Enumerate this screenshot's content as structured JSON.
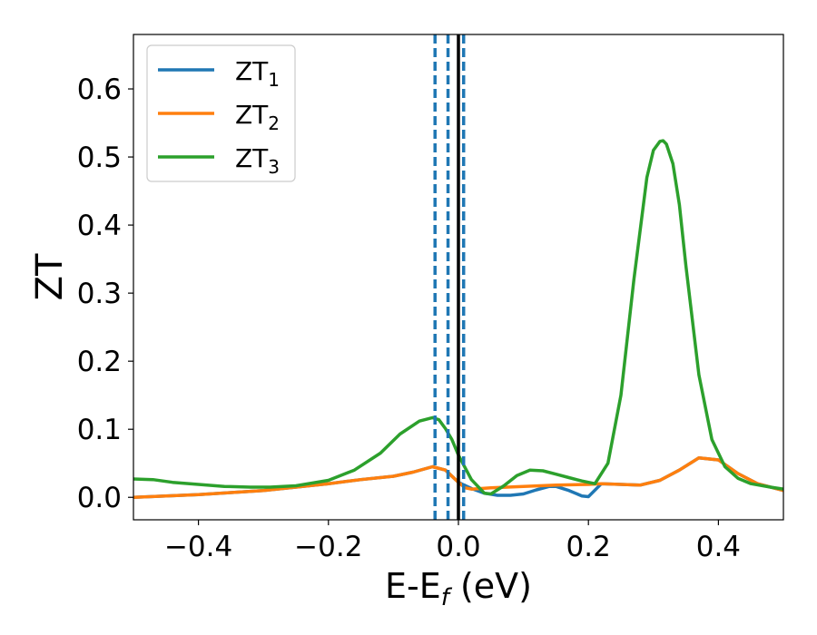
{
  "chart_data": {
    "type": "line",
    "xlabel_main": "E-E",
    "xlabel_sub": "f",
    "xlabel_tail": " (eV)",
    "ylabel": "ZT",
    "xlim": [
      -0.5,
      0.5
    ],
    "ylim": [
      -0.033,
      0.68
    ],
    "xticks": [
      -0.4,
      -0.2,
      0.0,
      0.2,
      0.4
    ],
    "xtick_labels": [
      "−0.4",
      "−0.2",
      "0.0",
      "0.2",
      "0.4"
    ],
    "yticks": [
      0.0,
      0.1,
      0.2,
      0.3,
      0.4,
      0.5,
      0.6
    ],
    "ytick_labels": [
      "0.0",
      "0.1",
      "0.2",
      "0.3",
      "0.4",
      "0.5",
      "0.6"
    ],
    "grid": false,
    "legend_position": "top-left",
    "vlines": [
      {
        "x": -0.036,
        "style": "dashed",
        "color": "#1f77b4"
      },
      {
        "x": -0.016,
        "style": "dashed",
        "color": "#1f77b4"
      },
      {
        "x": 0.008,
        "style": "dashed",
        "color": "#1f77b4"
      },
      {
        "x": 0.0,
        "style": "solid",
        "color": "#000000"
      }
    ],
    "series": [
      {
        "name": "ZT",
        "name_sub": "1",
        "color": "#1f77b4",
        "x": [
          -0.5,
          -0.45,
          -0.4,
          -0.35,
          -0.3,
          -0.25,
          -0.2,
          -0.15,
          -0.1,
          -0.07,
          -0.04,
          -0.02,
          0.0,
          0.02,
          0.04,
          0.06,
          0.08,
          0.1,
          0.12,
          0.14,
          0.15,
          0.17,
          0.19,
          0.2,
          0.22,
          0.25,
          0.28,
          0.31,
          0.34,
          0.37,
          0.4,
          0.43,
          0.46,
          0.5
        ],
        "values": [
          0.0,
          0.002,
          0.004,
          0.007,
          0.01,
          0.015,
          0.02,
          0.026,
          0.031,
          0.037,
          0.045,
          0.04,
          0.022,
          0.013,
          0.006,
          0.003,
          0.003,
          0.005,
          0.011,
          0.016,
          0.016,
          0.01,
          0.002,
          0.001,
          0.02,
          0.019,
          0.018,
          0.025,
          0.04,
          0.058,
          0.055,
          0.035,
          0.02,
          0.01
        ]
      },
      {
        "name": "ZT",
        "name_sub": "2",
        "color": "#ff7f0e",
        "x": [
          -0.5,
          -0.45,
          -0.4,
          -0.35,
          -0.3,
          -0.25,
          -0.2,
          -0.15,
          -0.1,
          -0.07,
          -0.04,
          -0.02,
          0.0,
          0.005,
          0.01,
          0.02,
          0.05,
          0.1,
          0.15,
          0.2,
          0.22,
          0.25,
          0.28,
          0.31,
          0.34,
          0.37,
          0.4,
          0.43,
          0.46,
          0.5
        ],
        "values": [
          0.0,
          0.002,
          0.004,
          0.007,
          0.01,
          0.015,
          0.02,
          0.026,
          0.031,
          0.037,
          0.045,
          0.04,
          0.022,
          0.018,
          0.014,
          0.012,
          0.014,
          0.016,
          0.018,
          0.019,
          0.02,
          0.019,
          0.018,
          0.025,
          0.04,
          0.058,
          0.055,
          0.035,
          0.02,
          0.01
        ]
      },
      {
        "name": "ZT",
        "name_sub": "3",
        "color": "#2ca02c",
        "x": [
          -0.5,
          -0.47,
          -0.44,
          -0.4,
          -0.36,
          -0.32,
          -0.29,
          -0.25,
          -0.2,
          -0.16,
          -0.12,
          -0.09,
          -0.06,
          -0.04,
          -0.03,
          -0.02,
          -0.01,
          0.0,
          0.02,
          0.04,
          0.05,
          0.07,
          0.09,
          0.11,
          0.13,
          0.15,
          0.17,
          0.19,
          0.21,
          0.23,
          0.25,
          0.27,
          0.29,
          0.3,
          0.31,
          0.315,
          0.32,
          0.33,
          0.34,
          0.35,
          0.37,
          0.39,
          0.41,
          0.43,
          0.45,
          0.48,
          0.5
        ],
        "values": [
          0.027,
          0.026,
          0.022,
          0.019,
          0.016,
          0.015,
          0.015,
          0.017,
          0.025,
          0.04,
          0.065,
          0.093,
          0.112,
          0.117,
          0.114,
          0.101,
          0.085,
          0.062,
          0.026,
          0.006,
          0.005,
          0.017,
          0.032,
          0.04,
          0.039,
          0.034,
          0.029,
          0.024,
          0.02,
          0.05,
          0.15,
          0.32,
          0.47,
          0.51,
          0.523,
          0.524,
          0.519,
          0.49,
          0.43,
          0.34,
          0.18,
          0.085,
          0.045,
          0.028,
          0.02,
          0.015,
          0.012
        ]
      }
    ]
  }
}
